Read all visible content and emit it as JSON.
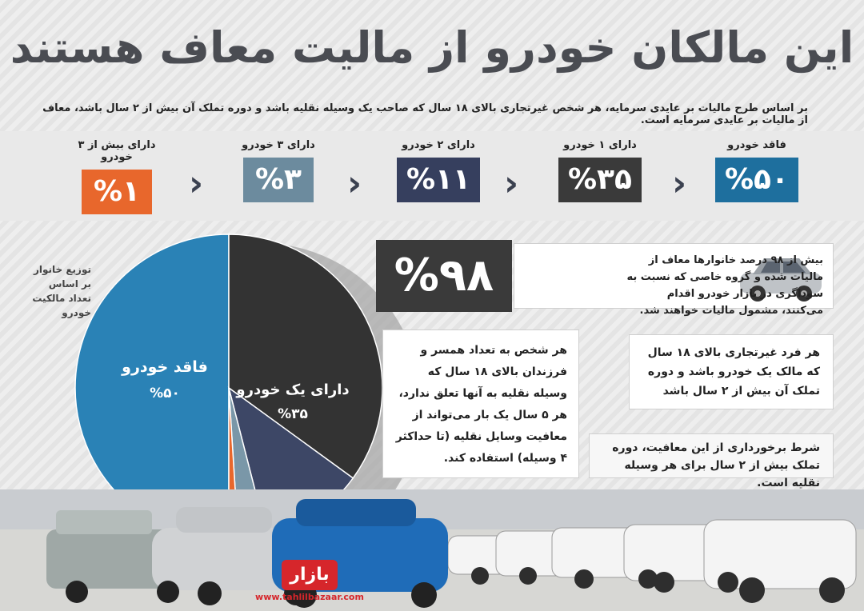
{
  "title": "این مالکان خودرو از مالیت معاف هستند",
  "subtitle": "بر اساس طرح مالیات بر عایدی سرمایه، هر شخص غیرتجاری بالای ۱۸ سال که صاحب یک وسیله نقلیه باشد و دوره تملک آن بیش از ۲ سال باشد، معاف از مالیات بر عایدی سرمایه است.",
  "stats": [
    {
      "label": "فاقد خودرو",
      "value": "%۵۰",
      "color": "#1e6f9e"
    },
    {
      "label": "دارای ۱ خودرو",
      "value": "%۳۵",
      "color": "#3a3a3a"
    },
    {
      "label": "دارای ۲ خودرو",
      "value": "%۱۱",
      "color": "#363f5e"
    },
    {
      "label": "دارای ۳ خودرو",
      "value": "%۳",
      "color": "#6c8b9e"
    },
    {
      "label": "دارای بیش از ۳ خودرو",
      "value": "%۱",
      "color": "#e8672c"
    }
  ],
  "chevron": "‹",
  "chart_data": {
    "type": "pie",
    "title": "توزیع خانوار بر اساس تعداد مالکیت خودرو",
    "categories": [
      "فاقد خودرو",
      "دارای یک خودرو",
      "دارای ۲ خودرو",
      "دارای ۳ خودرو",
      "دارای بیش از ۳ خودرو"
    ],
    "values": [
      50,
      35,
      11,
      3,
      1
    ],
    "colors": [
      "#2a82b6",
      "#333333",
      "#3d4766",
      "#7a97a8",
      "#e8672c"
    ],
    "slice_labels": [
      {
        "name": "فاقد خودرو",
        "value": "%۵۰"
      },
      {
        "name": "دارای یک خودرو",
        "value": "%۳۵"
      }
    ]
  },
  "pie_note": "توزیع خانوار بر اساس تعداد مالکیت خودرو",
  "highlight": {
    "value": "%۹۸",
    "text": "بیش از ۹۸ درصد خانوارها معاف از مالیات شده و گروه خاصی که نسبت به سوداگری در بازار خودرو اقدام می‌کنند، مشمول مالیات خواهند شد."
  },
  "cards": {
    "a": "هر شخص به تعداد همسر و فرزندان بالای ۱۸ سال که وسیله نقلیه به آنها تعلق ندارد، هر ۵ سال یک بار می‌تواند از معافیت وسایل نقلیه (تا حداکثر ۴ وسیله) استفاده کند.",
    "b": "هر فرد غیرتجاری بالای ۱۸ سال که مالک یک خودرو باشد و دوره تملک آن بیش از ۲ سال باشد",
    "c": "شرط برخورداری از این معافیت، دوره تملک بیش از ۲ سال برای هر وسیله نقلیه است."
  },
  "logo": {
    "name": "بازار",
    "url": "www.tahlilbazaar.com"
  }
}
